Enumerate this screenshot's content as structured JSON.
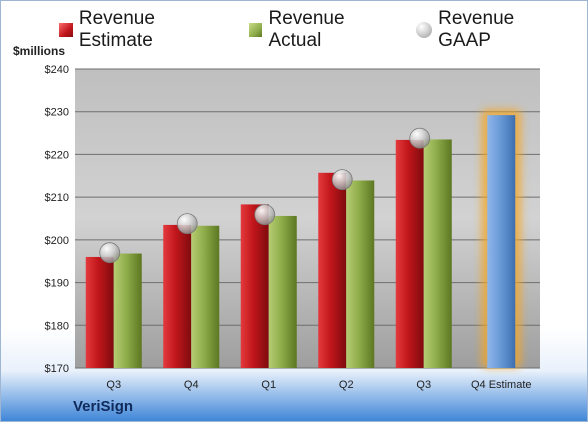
{
  "legend": {
    "estimate_label": "Revenue Estimate",
    "actual_label": "Revenue Actual",
    "gaap_label": "Revenue GAAP"
  },
  "unit_label": "$millions",
  "brand": "VeriSign",
  "colors": {
    "estimate": "#c0161b",
    "actual": "#8fad4a",
    "gaap": "#b0b0b0",
    "forecast": "#6a9bd8",
    "forecast_glow": "#f5a623"
  },
  "chart_data": {
    "type": "bar",
    "title": "",
    "xlabel": "",
    "ylabel": "$millions",
    "ylim": [
      170,
      240
    ],
    "yticks": [
      "$170",
      "$180",
      "$190",
      "$200",
      "$210",
      "$220",
      "$230",
      "$240"
    ],
    "categories": [
      "Q3",
      "Q4",
      "Q1",
      "Q2",
      "Q3",
      "Q4 Estimate"
    ],
    "series": [
      {
        "name": "Revenue Estimate",
        "values": [
          196.0,
          203.5,
          208.3,
          215.7,
          223.4,
          null
        ]
      },
      {
        "name": "Revenue Actual",
        "values": [
          196.8,
          203.3,
          205.6,
          213.9,
          223.5,
          null
        ]
      },
      {
        "name": "Revenue GAAP",
        "values": [
          197.0,
          203.8,
          205.9,
          214.1,
          223.8,
          null
        ]
      }
    ],
    "forecast": {
      "category": "Q4 Estimate",
      "value": 229.2
    },
    "grid": true,
    "legend_position": "top"
  }
}
